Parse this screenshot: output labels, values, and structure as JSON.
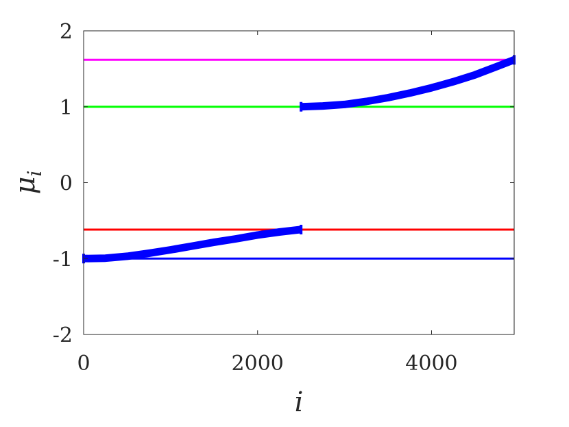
{
  "chart_data": {
    "type": "line",
    "xlabel": "i",
    "ylabel": "μ_i",
    "xlim": [
      0,
      4950
    ],
    "ylim": [
      -2,
      2
    ],
    "xticks": [
      0,
      2000,
      4000
    ],
    "yticks": [
      -2,
      -1,
      0,
      1,
      2
    ],
    "xtick_labels": [
      "0",
      "2000",
      "4000"
    ],
    "ytick_labels": [
      "-2",
      "-1",
      "0",
      "1",
      "2"
    ],
    "grid": false,
    "box": true,
    "reference_lines": [
      {
        "y": 1.618,
        "color": "#ff00ff"
      },
      {
        "y": 1.0,
        "color": "#00ff00"
      },
      {
        "y": -0.618,
        "color": "#ff0000"
      },
      {
        "y": -1.0,
        "color": "#0000ff"
      }
    ],
    "series": [
      {
        "color": "#0000ff",
        "style": "thick-markers",
        "segments": [
          {
            "x": [
              0,
              250,
              500,
              750,
              1000,
              1250,
              1500,
              1750,
              2000,
              2250,
              2500
            ],
            "y": [
              -1.0,
              -0.995,
              -0.97,
              -0.93,
              -0.885,
              -0.835,
              -0.785,
              -0.74,
              -0.69,
              -0.65,
              -0.618
            ]
          },
          {
            "x": [
              2500,
              2750,
              3000,
              3250,
              3500,
              3750,
              4000,
              4250,
              4500,
              4750,
              4950
            ],
            "y": [
              1.0,
              1.01,
              1.03,
              1.07,
              1.12,
              1.18,
              1.25,
              1.33,
              1.42,
              1.53,
              1.618
            ]
          }
        ]
      }
    ]
  }
}
